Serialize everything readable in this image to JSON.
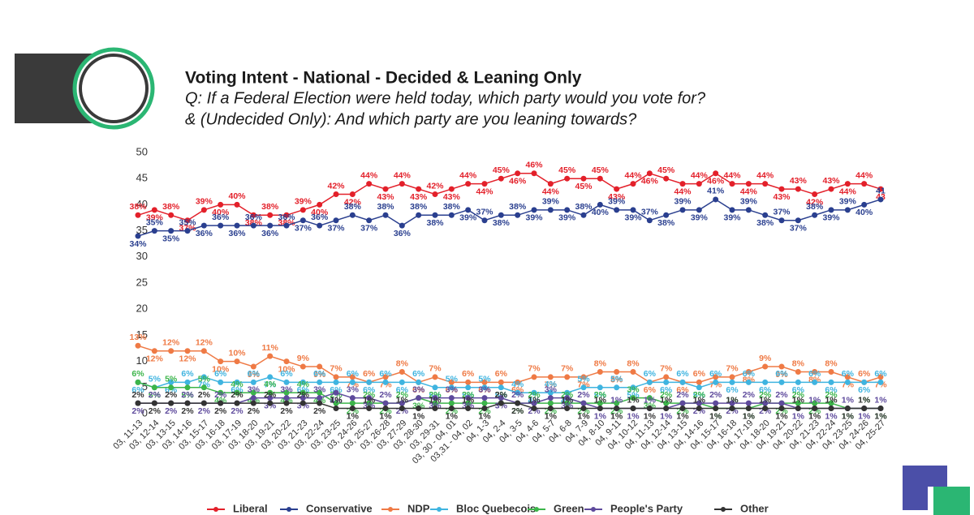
{
  "chart_data": {
    "type": "line",
    "title": "Voting Intent - National - Decided & Leaning Only",
    "subtitle": [
      "Q: If a Federal Election were held today, which party would you vote for?",
      "& (Undecided Only): And which party are you leaning towards?"
    ],
    "categories": [
      "03, 11-13",
      "03, 12-14",
      "03, 13-15",
      "03, 14-16",
      "03, 15-17",
      "03, 16-18",
      "03, 17-19",
      "03, 18-20",
      "03, 19-21",
      "03, 20-22",
      "03, 21-23",
      "03, 22-24",
      "03, 23-25",
      "03, 24-26",
      "03, 25-27",
      "03, 26-28",
      "03, 27-29",
      "03, 28-30",
      "03, 29-31",
      "03, 30 - 04, 01",
      "03,31 - 04, 02",
      "04, 1-3",
      "04, 2-4",
      "04, 3-5",
      "04, 4-6",
      "04, 5-7",
      "04, 6-8",
      "04, 7-9",
      "04, 8-10",
      "04, 9-11",
      "04, 10-12",
      "04, 11-13",
      "04, 12-14",
      "04, 13-15",
      "04, 14-16",
      "04, 15-17",
      "04, 16-18",
      "04, 17-19",
      "04, 18-20",
      "04, 19-21",
      "04, 20-22",
      "04, 21-23",
      "04, 22-24",
      "04, 23-25",
      "04, 24-26",
      "04, 25-27"
    ],
    "ylim": [
      0,
      50
    ],
    "yticks": [
      0,
      5,
      10,
      15,
      20,
      25,
      30,
      35,
      40,
      45,
      50
    ],
    "series": [
      {
        "name": "Liberal",
        "color": "#e3202a",
        "values": [
          38,
          39,
          38,
          37,
          39,
          40,
          40,
          38,
          38,
          38,
          39,
          40,
          42,
          42,
          44,
          43,
          44,
          43,
          42,
          43,
          44,
          44,
          45,
          46,
          46,
          44,
          45,
          45,
          45,
          43,
          44,
          46,
          45,
          44,
          44,
          46,
          44,
          44,
          44,
          43,
          43,
          42,
          43,
          44,
          44,
          43
        ],
        "value_labels": [
          "38%",
          "39%",
          "38%",
          "37%",
          "39%",
          "40%",
          "40%",
          "38%",
          "38%",
          "38%",
          "39%",
          "40%",
          "42%",
          "42%",
          "44%",
          "43%",
          "44%",
          "43%",
          "42%",
          "43%",
          "44%",
          "44%",
          "45%",
          "46%",
          "46%",
          "44%",
          "45%",
          "45%",
          "45%",
          "43%",
          "44%",
          "46%",
          "45%",
          "44%",
          "44%",
          "46%",
          "44%",
          "44%",
          "44%",
          "43%",
          "43%",
          "42%",
          "43%",
          "44%",
          "44%",
          "43"
        ]
      },
      {
        "name": "Conservative",
        "color": "#2a3f8f",
        "values": [
          34,
          35,
          35,
          35,
          36,
          36,
          36,
          36,
          36,
          36,
          37,
          36,
          37,
          38,
          37,
          38,
          36,
          38,
          38,
          38,
          39,
          37,
          38,
          38,
          39,
          39,
          39,
          38,
          40,
          39,
          39,
          37,
          38,
          39,
          39,
          41,
          39,
          39,
          38,
          37,
          37,
          38,
          39,
          39,
          40,
          41
        ],
        "value_labels": [
          "34%",
          "35%",
          "35%",
          "35%",
          "36%",
          "36%",
          "36%",
          "36%",
          "36%",
          "36%",
          "37%",
          "36%",
          "37%",
          "38%",
          "37%",
          "38%",
          "36%",
          "38%",
          "38%",
          "38%",
          "39%",
          "37%",
          "38%",
          "38%",
          "39%",
          "39%",
          "39%",
          "38%",
          "40%",
          "39%",
          "39%",
          "37%",
          "38%",
          "39%",
          "39%",
          "41%",
          "39%",
          "39%",
          "38%",
          "37%",
          "37%",
          "38%",
          "39%",
          "39%",
          "40%",
          "41"
        ]
      },
      {
        "name": "NDP",
        "color": "#ef7a45",
        "values": [
          13,
          12,
          12,
          12,
          12,
          10,
          10,
          9,
          11,
          10,
          9,
          9,
          7,
          7,
          6,
          7,
          8,
          6,
          7,
          6,
          6,
          6,
          6,
          6,
          7,
          7,
          7,
          7,
          8,
          8,
          8,
          6,
          7,
          6,
          6,
          7,
          7,
          8,
          9,
          9,
          8,
          8,
          8,
          7,
          6,
          7
        ],
        "value_labels": [
          "13%",
          "12%",
          "12%",
          "12%",
          "12%",
          "10%",
          "10%",
          "9%",
          "11%",
          "10%",
          "9%",
          "9%",
          "7%",
          "7%",
          "6%",
          "7%",
          "8%",
          "6%",
          "7%",
          "6%",
          "6%",
          "6%",
          "6%",
          "6%",
          "7%",
          "7%",
          "7%",
          "7%",
          "8%",
          "8%",
          "8%",
          "6%",
          "7%",
          "6%",
          "6%",
          "7%",
          "7%",
          "8%",
          "9%",
          "9%",
          "8%",
          "8%",
          "8%",
          "7%",
          "6%",
          "7%"
        ]
      },
      {
        "name": "Bloc Quebecois",
        "color": "#3fb4e0",
        "values": [
          6,
          5,
          6,
          6,
          7,
          6,
          6,
          6,
          7,
          6,
          6,
          6,
          6,
          6,
          6,
          6,
          6,
          6,
          5,
          5,
          5,
          5,
          5,
          4,
          4,
          4,
          4,
          5,
          5,
          5,
          5,
          6,
          6,
          6,
          5,
          6,
          6,
          6,
          6,
          6,
          6,
          6,
          6,
          6,
          6,
          6
        ],
        "value_labels": [
          "6%",
          "5%",
          "6%",
          "6%",
          "7%",
          "6%",
          "6%",
          "6%",
          "7%",
          "6%",
          "6%",
          "6%",
          "6%",
          "6%",
          "6%",
          "6%",
          "6%",
          "6%",
          "5%",
          "5%",
          "5%",
          "5%",
          "5%",
          "4%",
          "4%",
          "4%",
          "4%",
          "5%",
          "5%",
          "5%",
          "5%",
          "6%",
          "6%",
          "6%",
          "5%",
          "6%",
          "6%",
          "6%",
          "6%",
          "6%",
          "6%",
          "6%",
          "6%",
          "6%",
          "6%",
          "6%"
        ]
      },
      {
        "name": "Green",
        "color": "#3cb54a",
        "values": [
          6,
          5,
          5,
          5,
          5,
          4,
          4,
          4,
          4,
          4,
          4,
          4,
          2,
          2,
          2,
          2,
          2,
          3,
          2,
          2,
          2,
          2,
          2,
          2,
          2,
          2,
          2,
          2,
          2,
          2,
          3,
          3,
          2,
          2,
          2,
          1,
          1,
          1,
          2,
          2,
          2,
          2,
          2,
          1,
          1,
          1
        ],
        "value_labels": [
          "6%",
          "5%",
          "5%",
          "5%",
          "5%",
          "4%",
          "4%",
          "4%",
          "4%",
          "4%",
          "4%",
          "4%",
          "2%",
          "2%",
          "2%",
          "2%",
          "2%",
          "3%",
          "2%",
          "2%",
          "2%",
          "2%",
          "2%",
          "2%",
          "2%",
          "2%",
          "2%",
          "2%",
          "2%",
          "2%",
          "3%",
          "3%",
          "2%",
          "2%",
          "2%",
          "1%",
          "1%",
          "1%",
          "2%",
          "2%",
          "2%",
          "2%",
          "2%",
          "1%",
          "1%",
          "1%"
        ]
      },
      {
        "name": "People's Party",
        "color": "#5e4a9c",
        "values": [
          2,
          2,
          2,
          2,
          2,
          2,
          2,
          3,
          3,
          3,
          3,
          3,
          4,
          3,
          3,
          2,
          2,
          3,
          3,
          3,
          3,
          3,
          3,
          2,
          2,
          3,
          3,
          2,
          1,
          1,
          1,
          1,
          1,
          2,
          2,
          2,
          2,
          2,
          2,
          2,
          1,
          1,
          1,
          1,
          1,
          1
        ],
        "value_labels": [
          "2%",
          "2%",
          "2%",
          "2%",
          "2%",
          "2%",
          "2%",
          "3%",
          "3%",
          "3%",
          "3%",
          "3%",
          "4%",
          "3%",
          "3%",
          "2%",
          "2%",
          "3%",
          "3%",
          "3%",
          "3%",
          "3%",
          "3%",
          "2%",
          "2%",
          "3%",
          "3%",
          "2%",
          "1%",
          "1%",
          "1%",
          "1%",
          "1%",
          "2%",
          "2%",
          "2%",
          "2%",
          "2%",
          "2%",
          "2%",
          "1%",
          "1%",
          "1%",
          "1%",
          "1%",
          "1%"
        ]
      },
      {
        "name": "Other",
        "color": "#333333",
        "values": [
          2,
          2,
          2,
          2,
          2,
          2,
          2,
          2,
          2,
          2,
          2,
          2,
          1,
          1,
          1,
          1,
          1,
          1,
          1,
          1,
          1,
          1,
          2,
          2,
          1,
          1,
          1,
          1,
          1,
          1,
          1,
          1,
          1,
          1,
          1,
          1,
          1,
          1,
          1,
          1,
          1,
          1,
          1,
          1,
          1,
          1
        ],
        "value_labels": [
          "2%",
          "2%",
          "2%",
          "2%",
          "2%",
          "2%",
          "2%",
          "2%",
          "2%",
          "2%",
          "2%",
          "2%",
          "1%",
          "1%",
          "1%",
          "1%",
          "1%",
          "1%",
          "1%",
          "1%",
          "1%",
          "1%",
          "2%",
          "2%",
          "1%",
          "1%",
          "1%",
          "1%",
          "1%",
          "1%",
          "1%",
          "1%",
          "1%",
          "1%",
          "1%",
          "1%",
          "1%",
          "1%",
          "1%",
          "1%",
          "1%",
          "1%",
          "1%",
          "1%",
          "1%",
          "1%"
        ]
      }
    ]
  }
}
